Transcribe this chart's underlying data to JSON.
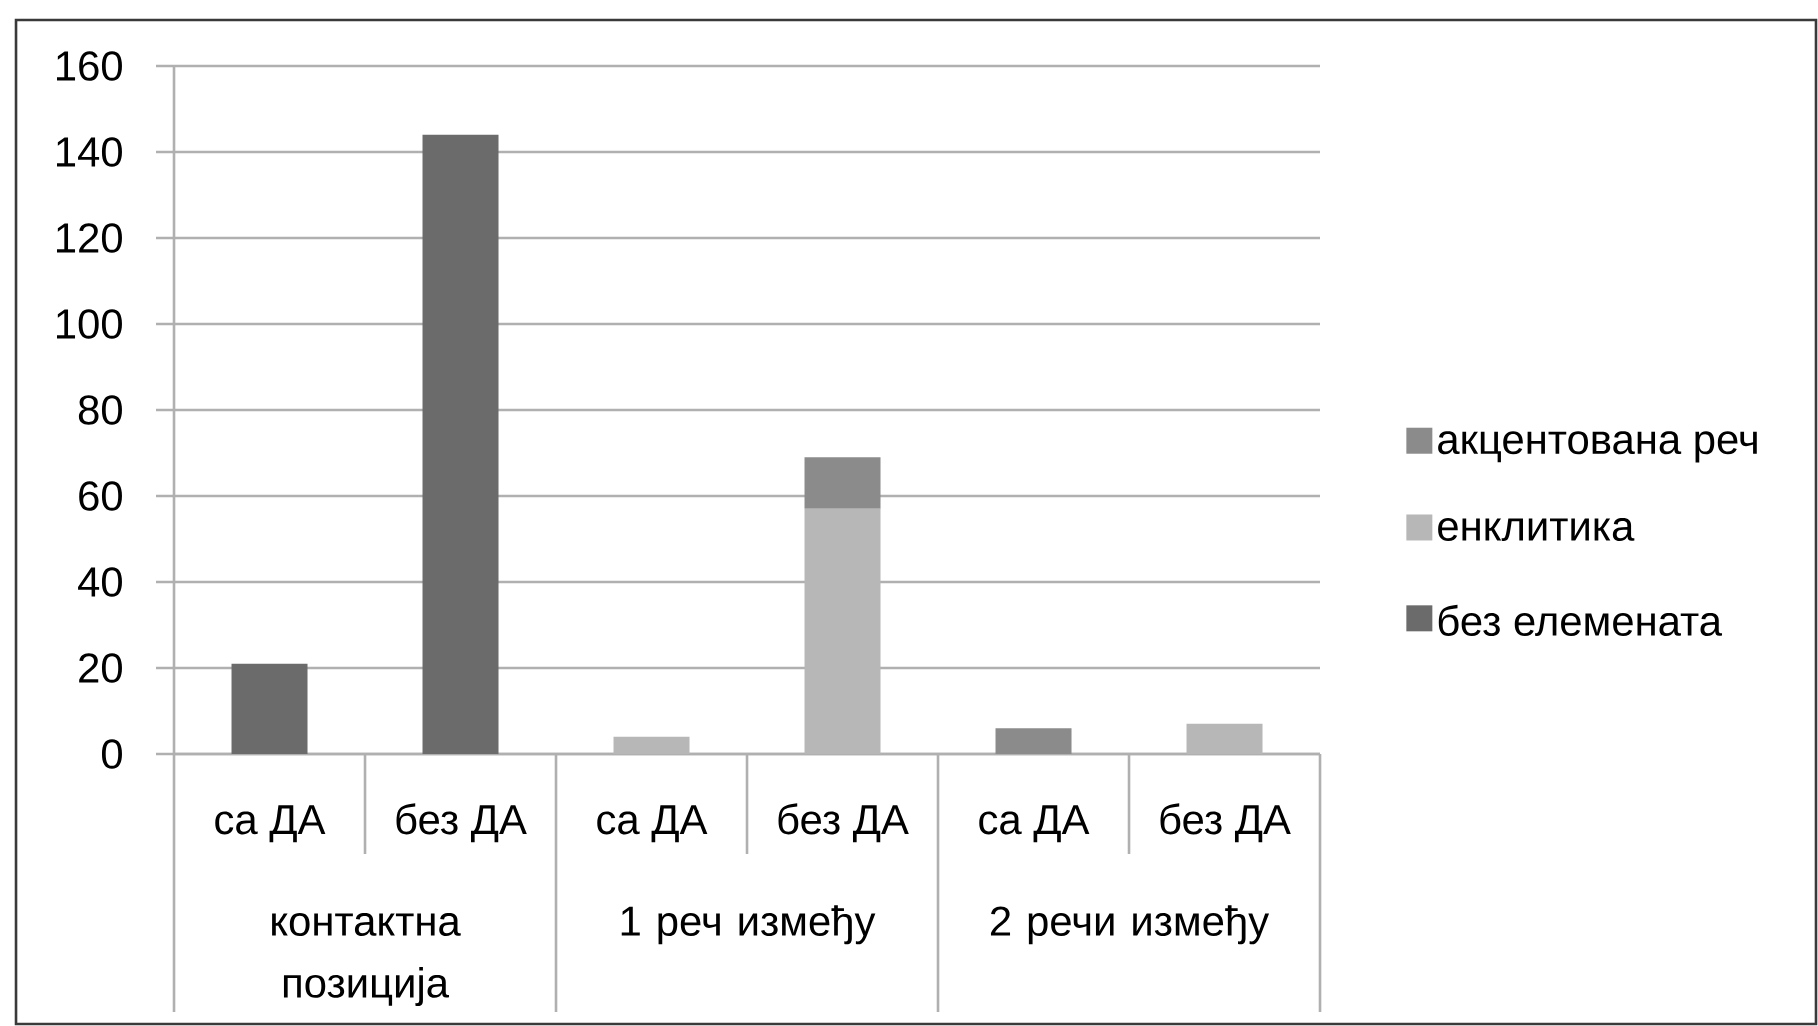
{
  "chart_data": {
    "type": "bar",
    "stacked": true,
    "categories": [
      "са ДА",
      "без ДА",
      "са ДА",
      "без ДА",
      "са ДА",
      "без ДА"
    ],
    "series": [
      {
        "name": "без елемената",
        "color": "#6b6b6b",
        "values": [
          21,
          144,
          null,
          null,
          null,
          null
        ]
      },
      {
        "name": "енклитика",
        "color": "#b7b7b7",
        "values": [
          null,
          null,
          4,
          57,
          null,
          7
        ]
      },
      {
        "name": "акцентована реч",
        "color": "#8b8b8b",
        "values": [
          null,
          null,
          null,
          12,
          6,
          null
        ]
      }
    ],
    "ylim": [
      0,
      160
    ],
    "yticks": [
      0,
      20,
      40,
      60,
      80,
      100,
      120,
      140,
      160
    ],
    "grid": "y",
    "legend": "right",
    "annotations": [
      "контактна позиција",
      "1 реч између",
      "2 речи између"
    ]
  }
}
